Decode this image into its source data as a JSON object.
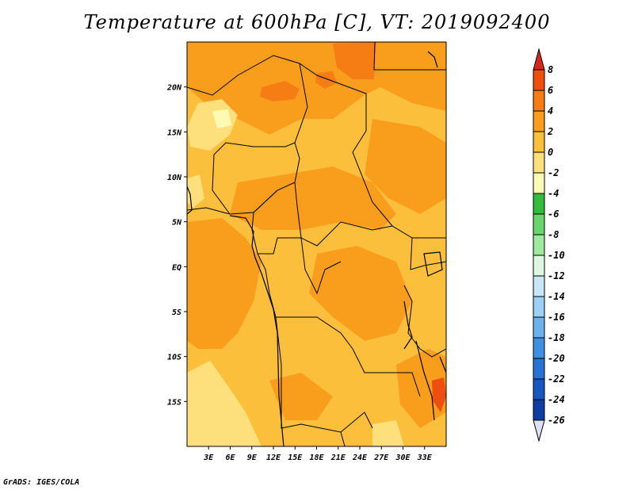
{
  "title": "Temperature at 600hPa [C], VT: 2019092400",
  "credit": "GrADS: IGES/COLA",
  "map": {
    "lon_range": [
      0,
      36
    ],
    "lat_range": [
      -20,
      25
    ],
    "lon_ticks": [
      {
        "value": 3,
        "label": "3E"
      },
      {
        "value": 6,
        "label": "6E"
      },
      {
        "value": 9,
        "label": "9E"
      },
      {
        "value": 12,
        "label": "12E"
      },
      {
        "value": 15,
        "label": "15E"
      },
      {
        "value": 18,
        "label": "18E"
      },
      {
        "value": 21,
        "label": "21E"
      },
      {
        "value": 24,
        "label": "24E"
      },
      {
        "value": 27,
        "label": "27E"
      },
      {
        "value": 30,
        "label": "30E"
      },
      {
        "value": 33,
        "label": "33E"
      }
    ],
    "lat_ticks": [
      {
        "value": 20,
        "label": "20N"
      },
      {
        "value": 15,
        "label": "15N"
      },
      {
        "value": 10,
        "label": "10N"
      },
      {
        "value": 5,
        "label": "5N"
      },
      {
        "value": 0,
        "label": "EQ"
      },
      {
        "value": -5,
        "label": "5S"
      },
      {
        "value": -10,
        "label": "10S"
      },
      {
        "value": -15,
        "label": "15S"
      }
    ]
  },
  "colorbar": {
    "levels": [
      "8",
      "6",
      "4",
      "2",
      "0",
      "-2",
      "-4",
      "-6",
      "-8",
      "-10",
      "-12",
      "-14",
      "-16",
      "-18",
      "-20",
      "-22",
      "-24",
      "-26"
    ],
    "colors": [
      "#d62718",
      "#ee4f10",
      "#f57d14",
      "#f99e1c",
      "#fbbf3c",
      "#fde07c",
      "#fefab4",
      "#33bb3a",
      "#68d56e",
      "#9ee89f",
      "#ddf8e0",
      "#c9e6f8",
      "#9dd0f5",
      "#6cb2ee",
      "#3f8fe3",
      "#2672d6",
      "#1757c3",
      "#0d3ea0",
      "#0a1a6e",
      "#e0e0f4"
    ]
  }
}
